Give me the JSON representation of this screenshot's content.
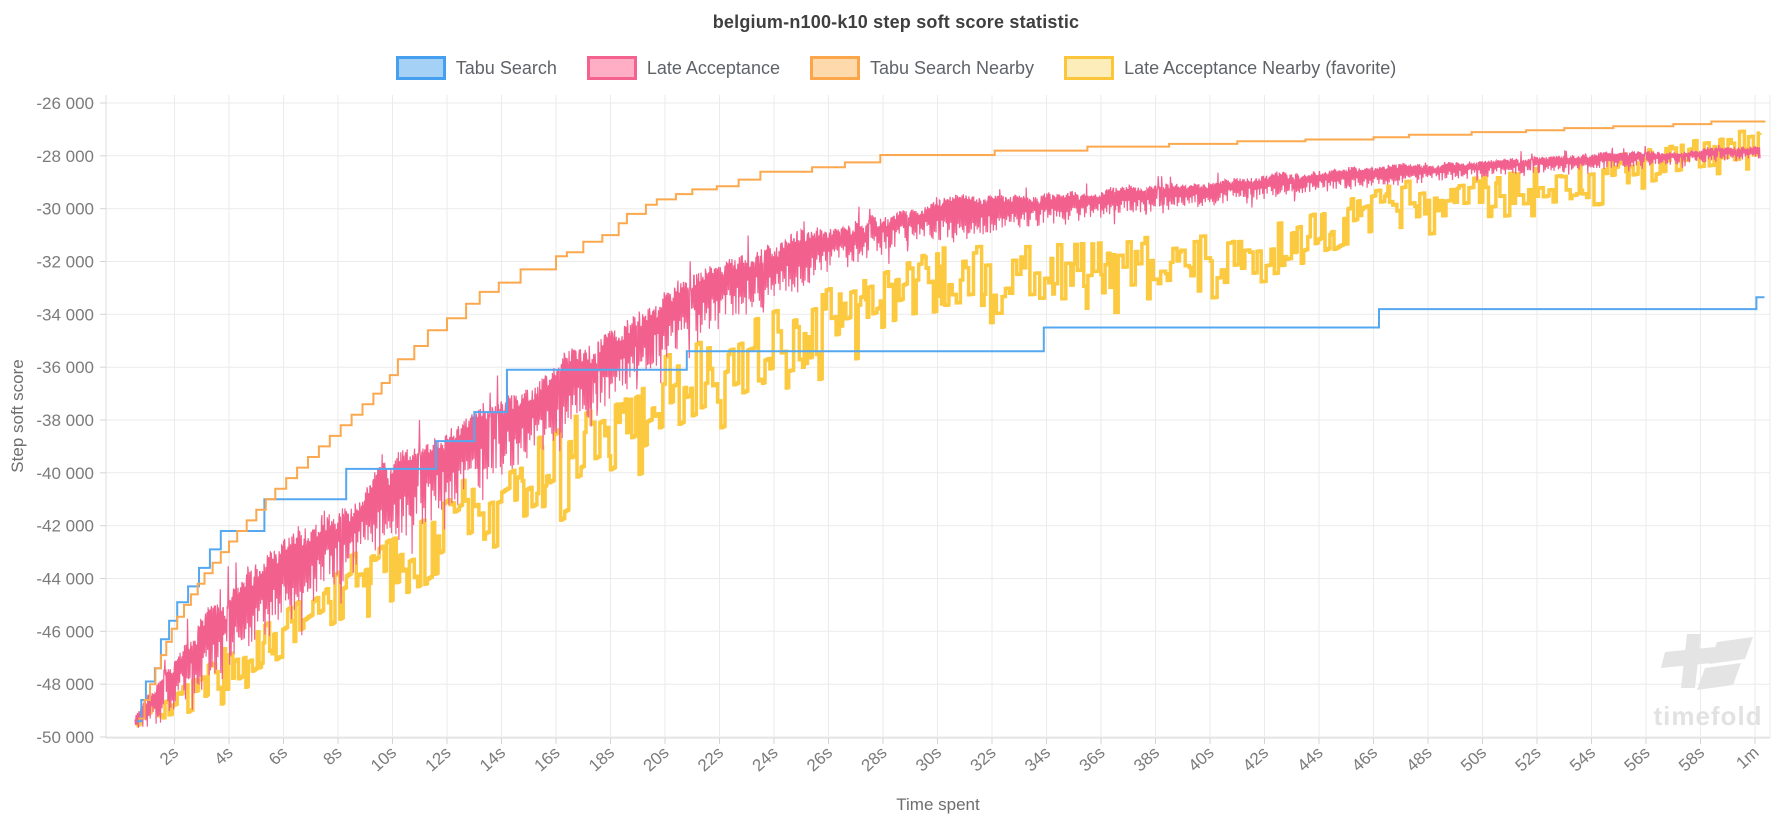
{
  "title": "belgium-n100-k10 step soft score statistic",
  "watermark": {
    "text": "timefold"
  },
  "chart_data": {
    "type": "line",
    "title": "belgium-n100-k10 step soft score statistic",
    "xlabel": "Time spent",
    "ylabel": "Step soft score",
    "xlim_seconds": [
      0,
      60
    ],
    "ylim": [
      -50000,
      -26000
    ],
    "grid": true,
    "legend_position": "top",
    "x_ticks": [
      {
        "t": 2,
        "label": "2s"
      },
      {
        "t": 4,
        "label": "4s"
      },
      {
        "t": 6,
        "label": "6s"
      },
      {
        "t": 8,
        "label": "8s"
      },
      {
        "t": 10,
        "label": "10s"
      },
      {
        "t": 12,
        "label": "12s"
      },
      {
        "t": 14,
        "label": "14s"
      },
      {
        "t": 16,
        "label": "16s"
      },
      {
        "t": 18,
        "label": "18s"
      },
      {
        "t": 20,
        "label": "20s"
      },
      {
        "t": 22,
        "label": "22s"
      },
      {
        "t": 24,
        "label": "24s"
      },
      {
        "t": 26,
        "label": "26s"
      },
      {
        "t": 28,
        "label": "28s"
      },
      {
        "t": 30,
        "label": "30s"
      },
      {
        "t": 32,
        "label": "32s"
      },
      {
        "t": 34,
        "label": "34s"
      },
      {
        "t": 36,
        "label": "36s"
      },
      {
        "t": 38,
        "label": "38s"
      },
      {
        "t": 40,
        "label": "40s"
      },
      {
        "t": 42,
        "label": "42s"
      },
      {
        "t": 44,
        "label": "44s"
      },
      {
        "t": 46,
        "label": "46s"
      },
      {
        "t": 48,
        "label": "48s"
      },
      {
        "t": 50,
        "label": "50s"
      },
      {
        "t": 52,
        "label": "52s"
      },
      {
        "t": 54,
        "label": "54s"
      },
      {
        "t": 56,
        "label": "56s"
      },
      {
        "t": 58,
        "label": "58s"
      },
      {
        "t": 60,
        "label": "1m"
      }
    ],
    "y_ticks": [
      {
        "v": -26000,
        "label": "-26 000"
      },
      {
        "v": -28000,
        "label": "-28 000"
      },
      {
        "v": -30000,
        "label": "-30 000"
      },
      {
        "v": -32000,
        "label": "-32 000"
      },
      {
        "v": -34000,
        "label": "-34 000"
      },
      {
        "v": -36000,
        "label": "-36 000"
      },
      {
        "v": -38000,
        "label": "-38 000"
      },
      {
        "v": -40000,
        "label": "-40 000"
      },
      {
        "v": -42000,
        "label": "-42 000"
      },
      {
        "v": -44000,
        "label": "-44 000"
      },
      {
        "v": -46000,
        "label": "-46 000"
      },
      {
        "v": -48000,
        "label": "-48 000"
      },
      {
        "v": -50000,
        "label": "-50 000"
      }
    ],
    "value_floor": -49680,
    "series": [
      {
        "name": "Tabu Search",
        "type": "step",
        "color": "#55a8f0",
        "swatch_fill": "#a6d1f6",
        "swatch_border": "#47a0ef",
        "line_width": 2,
        "points": [
          [
            0.62,
            -49400
          ],
          [
            0.78,
            -48600
          ],
          [
            0.95,
            -47900
          ],
          [
            1.28,
            -47400
          ],
          [
            1.5,
            -46300
          ],
          [
            1.8,
            -45600
          ],
          [
            2.1,
            -44900
          ],
          [
            2.5,
            -44300
          ],
          [
            2.9,
            -43600
          ],
          [
            3.3,
            -42900
          ],
          [
            3.7,
            -42200
          ],
          [
            5.3,
            -41000
          ],
          [
            8.3,
            -39850
          ],
          [
            11.6,
            -38800
          ],
          [
            13.0,
            -37700
          ],
          [
            14.2,
            -36100
          ],
          [
            20.8,
            -35400
          ],
          [
            33.9,
            -34500
          ],
          [
            46.2,
            -33800
          ],
          [
            60.05,
            -33350
          ],
          [
            60.35,
            -33350
          ]
        ]
      },
      {
        "name": "Late Acceptance",
        "type": "noisy-spike",
        "color": "#f2608e",
        "swatch_fill": "#ffaec6",
        "swatch_border": "#f4628f",
        "line_width": 1.2,
        "seed": 7,
        "points": [
          [
            0.55,
            -49350
          ],
          [
            1,
            -48800
          ],
          [
            2,
            -47500
          ],
          [
            3,
            -46300
          ],
          [
            4,
            -45300
          ],
          [
            5,
            -44400
          ],
          [
            6,
            -43500
          ],
          [
            7,
            -42700
          ],
          [
            8,
            -42000
          ],
          [
            9,
            -41200
          ],
          [
            10,
            -40600
          ],
          [
            11,
            -39900
          ],
          [
            12,
            -39300
          ],
          [
            13,
            -38600
          ],
          [
            14,
            -38000
          ],
          [
            15,
            -37300
          ],
          [
            16,
            -36700
          ],
          [
            17,
            -36000
          ],
          [
            18,
            -35300
          ],
          [
            19,
            -34600
          ],
          [
            20,
            -33900
          ],
          [
            21,
            -33300
          ],
          [
            22,
            -32800
          ],
          [
            23,
            -32300
          ],
          [
            24,
            -31900
          ],
          [
            25,
            -31500
          ],
          [
            26,
            -31200
          ],
          [
            27,
            -30900
          ],
          [
            28,
            -30600
          ],
          [
            29,
            -30300
          ],
          [
            30,
            -30200
          ],
          [
            31,
            -30100
          ],
          [
            32,
            -30000
          ],
          [
            33,
            -29900
          ],
          [
            34,
            -29800
          ],
          [
            35,
            -29700
          ],
          [
            36,
            -29600
          ],
          [
            38,
            -29400
          ],
          [
            40,
            -29200
          ],
          [
            42,
            -29000
          ],
          [
            44,
            -28800
          ],
          [
            46,
            -28650
          ],
          [
            48,
            -28500
          ],
          [
            50,
            -28350
          ],
          [
            52,
            -28200
          ],
          [
            54,
            -28100
          ],
          [
            56,
            -28000
          ],
          [
            58,
            -27900
          ],
          [
            60.2,
            -27750
          ]
        ],
        "noise_amp": [
          [
            0.55,
            300
          ],
          [
            1.5,
            1100
          ],
          [
            3,
            1600
          ],
          [
            5,
            1900
          ],
          [
            8,
            1900
          ],
          [
            12,
            1800
          ],
          [
            16,
            1800
          ],
          [
            20,
            1600
          ],
          [
            24,
            1400
          ],
          [
            27,
            1000
          ],
          [
            30,
            850
          ],
          [
            34,
            700
          ],
          [
            38,
            600
          ],
          [
            42,
            550
          ],
          [
            46,
            450
          ],
          [
            50,
            400
          ],
          [
            55,
            350
          ],
          [
            60,
            300
          ]
        ]
      },
      {
        "name": "Tabu Search Nearby",
        "type": "step",
        "color": "#fba84e",
        "swatch_fill": "#fdd9ac",
        "swatch_border": "#fba64a",
        "line_width": 2,
        "points": [
          [
            0.68,
            -49300
          ],
          [
            0.9,
            -48600
          ],
          [
            1.1,
            -48000
          ],
          [
            1.3,
            -47400
          ],
          [
            1.5,
            -46900
          ],
          [
            1.7,
            -46400
          ],
          [
            1.9,
            -45900
          ],
          [
            2.1,
            -45450
          ],
          [
            2.35,
            -45000
          ],
          [
            2.6,
            -44600
          ],
          [
            2.85,
            -44200
          ],
          [
            3.1,
            -43800
          ],
          [
            3.4,
            -43400
          ],
          [
            3.7,
            -43000
          ],
          [
            4.0,
            -42600
          ],
          [
            4.3,
            -42200
          ],
          [
            4.65,
            -41800
          ],
          [
            5.0,
            -41400
          ],
          [
            5.35,
            -41000
          ],
          [
            5.7,
            -40600
          ],
          [
            6.1,
            -40200
          ],
          [
            6.5,
            -39800
          ],
          [
            6.9,
            -39400
          ],
          [
            7.3,
            -39000
          ],
          [
            7.7,
            -38600
          ],
          [
            8.1,
            -38200
          ],
          [
            8.5,
            -37800
          ],
          [
            8.9,
            -37400
          ],
          [
            9.3,
            -37000
          ],
          [
            9.6,
            -36600
          ],
          [
            9.9,
            -36300
          ],
          [
            10.2,
            -35700
          ],
          [
            10.8,
            -35200
          ],
          [
            11.3,
            -34600
          ],
          [
            12.0,
            -34150
          ],
          [
            12.7,
            -33600
          ],
          [
            13.2,
            -33150
          ],
          [
            13.9,
            -32800
          ],
          [
            14.7,
            -32300
          ],
          [
            16.0,
            -31800
          ],
          [
            16.4,
            -31650
          ],
          [
            17.0,
            -31250
          ],
          [
            17.7,
            -31000
          ],
          [
            18.3,
            -30550
          ],
          [
            18.6,
            -30200
          ],
          [
            19.3,
            -29850
          ],
          [
            19.7,
            -29650
          ],
          [
            20.4,
            -29450
          ],
          [
            21.0,
            -29270
          ],
          [
            21.9,
            -29150
          ],
          [
            22.7,
            -28900
          ],
          [
            23.5,
            -28600
          ],
          [
            25.4,
            -28430
          ],
          [
            26.6,
            -28250
          ],
          [
            27.9,
            -27970
          ],
          [
            32.1,
            -27800
          ],
          [
            35.5,
            -27650
          ],
          [
            38.5,
            -27550
          ],
          [
            41.0,
            -27450
          ],
          [
            43.5,
            -27380
          ],
          [
            46.0,
            -27300
          ],
          [
            47.3,
            -27200
          ],
          [
            49.6,
            -27100
          ],
          [
            51.6,
            -27030
          ],
          [
            53.0,
            -26950
          ],
          [
            54.8,
            -26880
          ],
          [
            57.0,
            -26800
          ],
          [
            58.4,
            -26700
          ],
          [
            60.35,
            -26670
          ]
        ]
      },
      {
        "name": "Late Acceptance Nearby (favorite)",
        "type": "noisy-block",
        "color": "#fcca41",
        "swatch_fill": "#fdedba",
        "swatch_border": "#fbc63a",
        "line_width": 3.5,
        "seed": 3,
        "points": [
          [
            0.6,
            -49300
          ],
          [
            1,
            -49100
          ],
          [
            2,
            -48700
          ],
          [
            3,
            -48100
          ],
          [
            4,
            -47400
          ],
          [
            5,
            -46700
          ],
          [
            6,
            -46000
          ],
          [
            7,
            -45300
          ],
          [
            8,
            -44600
          ],
          [
            9,
            -43900
          ],
          [
            10,
            -43200
          ],
          [
            11,
            -42600
          ],
          [
            12,
            -42000
          ],
          [
            13,
            -41400
          ],
          [
            14,
            -40900
          ],
          [
            15,
            -40300
          ],
          [
            16,
            -39700
          ],
          [
            17,
            -39100
          ],
          [
            18,
            -38500
          ],
          [
            19,
            -37900
          ],
          [
            20,
            -37300
          ],
          [
            21,
            -36700
          ],
          [
            22,
            -36200
          ],
          [
            23,
            -35700
          ],
          [
            24,
            -35200
          ],
          [
            25,
            -34800
          ],
          [
            26,
            -34400
          ],
          [
            27,
            -34000
          ],
          [
            28,
            -33600
          ],
          [
            29,
            -33100
          ],
          [
            30,
            -32800
          ],
          [
            32,
            -32600
          ],
          [
            34,
            -32450
          ],
          [
            36,
            -32300
          ],
          [
            38,
            -32100
          ],
          [
            40,
            -31950
          ],
          [
            42,
            -31700
          ],
          [
            43,
            -31500
          ],
          [
            44,
            -31100
          ],
          [
            45,
            -30600
          ],
          [
            46,
            -30150
          ],
          [
            47,
            -29950
          ],
          [
            48,
            -29750
          ],
          [
            49,
            -29600
          ],
          [
            50,
            -29450
          ],
          [
            51,
            -29300
          ],
          [
            52,
            -29200
          ],
          [
            53,
            -29100
          ],
          [
            54,
            -29000
          ],
          [
            55,
            -28700
          ],
          [
            56,
            -28450
          ],
          [
            57,
            -28150
          ],
          [
            58,
            -27900
          ],
          [
            59,
            -27750
          ],
          [
            60.2,
            -27600
          ]
        ],
        "noise_amp": [
          [
            0.6,
            300
          ],
          [
            2,
            500
          ],
          [
            4,
            800
          ],
          [
            6,
            1000
          ],
          [
            8,
            1200
          ],
          [
            10,
            1300
          ],
          [
            12,
            1400
          ],
          [
            14,
            1500
          ],
          [
            18,
            1500
          ],
          [
            22,
            1450
          ],
          [
            26,
            1350
          ],
          [
            30,
            1300
          ],
          [
            34,
            1150
          ],
          [
            38,
            1050
          ],
          [
            42,
            950
          ],
          [
            46,
            850
          ],
          [
            50,
            700
          ],
          [
            54,
            650
          ],
          [
            58,
            600
          ],
          [
            60,
            550
          ]
        ]
      }
    ],
    "draw_order": [
      3,
      1,
      0,
      2
    ],
    "axis_colors": {
      "grid": "#ebebeb",
      "border": "#dcdcdc",
      "tick": "#d4d4d4",
      "tick_label": "#7b7b7b"
    }
  }
}
